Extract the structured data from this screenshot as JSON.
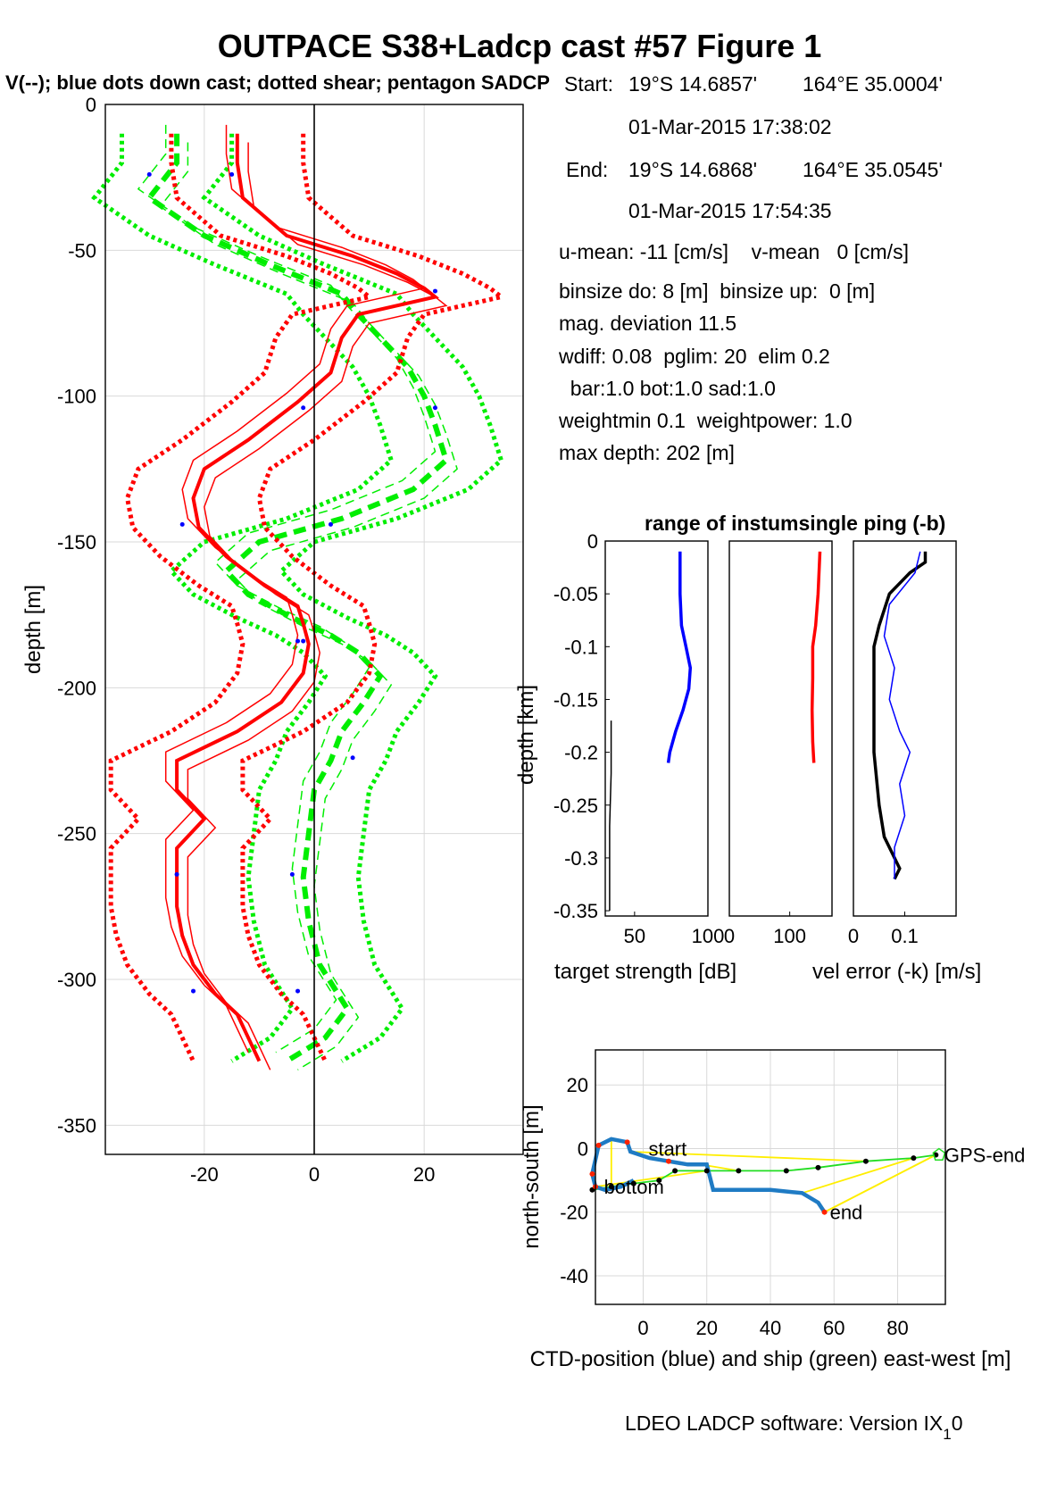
{
  "figure": {
    "title": "OUTPACE S38+Ladcp cast #57  Figure 1",
    "subtitle": "V(--); blue dots down cast; dotted shear; pentagon SADCP",
    "footer_main": "LDEO LADCP software: Version IX",
    "footer_sub": "1",
    "footer_end": "0"
  },
  "info": {
    "start_label": "Start:",
    "start_lat": "19°S 14.6857'",
    "start_lon": "164°E 35.0004'",
    "start_time": "01-Mar-2015 17:38:02",
    "end_label": "End:",
    "end_lat": "19°S 14.6868'",
    "end_lon": "164°E 35.0545'",
    "end_time": "01-Mar-2015 17:54:35",
    "line1": "u-mean: -11 [cm/s]    v-mean   0 [cm/s]",
    "line2": "binsize do: 8 [m]  binsize up:  0 [m]",
    "line3": "mag. deviation 11.5",
    "line4": "wdiff: 0.08  pglim: 20  elim 0.2",
    "line5": "  bar:1.0 bot:1.0 sad:1.0",
    "line6": "weightmin 0.1  weightpower: 1.0",
    "line7": "max depth: 202 [m]"
  },
  "chart_data": [
    {
      "type": "line",
      "name": "velocity-profile",
      "ylabel": "depth [m]",
      "xlim": [
        -38,
        38
      ],
      "ylim": [
        -360,
        0
      ],
      "xticks": [
        -20,
        0,
        20
      ],
      "yticks": [
        0,
        -50,
        -100,
        -150,
        -200,
        -250,
        -300,
        -350
      ],
      "grid": true,
      "colors": {
        "u": "#ff0000",
        "v": "#00ee00",
        "dots": "#0000ff",
        "zero": "#000000"
      },
      "u_depth": [
        -10,
        -20,
        -32,
        -45,
        -52,
        -58,
        -63,
        -66,
        -72,
        -80,
        -92,
        -102,
        -115,
        -125,
        -135,
        -145,
        -155,
        -165,
        -172,
        -178,
        -185,
        -195,
        -205,
        -215,
        -225,
        -235,
        -245,
        -255,
        -265,
        -275,
        -285,
        -295,
        -305,
        -312,
        -320,
        -328
      ],
      "u": [
        -14,
        -14,
        -13,
        -5,
        7,
        15,
        20,
        22,
        8,
        5,
        3,
        -3,
        -12,
        -20,
        -22,
        -21,
        -16,
        -9,
        -3,
        -2,
        -1,
        -2,
        -6,
        -14,
        -25,
        -25,
        -20,
        -25,
        -25,
        -25,
        -24,
        -22,
        -18,
        -14,
        -12,
        -10
      ],
      "u_dotted_lo": [
        -26,
        -26,
        -25,
        -17,
        -5,
        3,
        8,
        10,
        -4,
        -7,
        -9,
        -15,
        -24,
        -32,
        -34,
        -33,
        -28,
        -21,
        -15,
        -14,
        -13,
        -14,
        -18,
        -26,
        -37,
        -37,
        -32,
        -37,
        -37,
        -37,
        -36,
        -34,
        -30,
        -26,
        -24,
        -22
      ],
      "u_dotted_hi": [
        -2,
        -2,
        -1,
        7,
        19,
        27,
        32,
        34,
        20,
        17,
        15,
        9,
        0,
        -8,
        -10,
        -9,
        -4,
        3,
        9,
        10,
        11,
        10,
        6,
        -2,
        -13,
        -13,
        -8,
        -13,
        -13,
        -13,
        -12,
        -10,
        -6,
        -2,
        0,
        2
      ],
      "v_depth": [
        -10,
        -20,
        -32,
        -45,
        -55,
        -65,
        -72,
        -80,
        -90,
        -100,
        -110,
        -122,
        -132,
        -142,
        -150,
        -160,
        -168,
        -176,
        -182,
        -188,
        -196,
        -205,
        -215,
        -225,
        -235,
        -250,
        -265,
        -280,
        -295,
        -310,
        -320,
        -328
      ],
      "v": [
        -25,
        -25,
        -30,
        -20,
        -8,
        5,
        8,
        12,
        17,
        20,
        22,
        24,
        18,
        5,
        -10,
        -16,
        -12,
        -4,
        3,
        8,
        12,
        9,
        5,
        3,
        0,
        -1,
        -2,
        -1,
        1,
        6,
        2,
        -5
      ],
      "v_dotted_lo": [
        -35,
        -35,
        -40,
        -30,
        -18,
        -5,
        -2,
        2,
        7,
        10,
        12,
        14,
        8,
        -5,
        -20,
        -26,
        -22,
        -14,
        -7,
        -2,
        2,
        -1,
        -5,
        -7,
        -10,
        -11,
        -12,
        -11,
        -9,
        -4,
        -8,
        -15
      ],
      "v_dotted_hi": [
        -15,
        -15,
        -20,
        -10,
        2,
        15,
        18,
        22,
        27,
        30,
        32,
        34,
        28,
        15,
        0,
        -6,
        -2,
        6,
        13,
        18,
        22,
        19,
        15,
        13,
        10,
        9,
        8,
        9,
        11,
        16,
        12,
        5
      ],
      "blue_dots": [
        [
          -30,
          -24
        ],
        [
          -15,
          -24
        ],
        [
          22,
          -64
        ],
        [
          22,
          -104
        ],
        [
          -2,
          -104
        ],
        [
          -24,
          -144
        ],
        [
          3,
          -144
        ],
        [
          -3,
          -184
        ],
        [
          -2,
          -184
        ],
        [
          7,
          -224
        ],
        [
          -25,
          -264
        ],
        [
          -4,
          -264
        ],
        [
          -22,
          -304
        ],
        [
          -3,
          -304
        ]
      ]
    },
    {
      "type": "line",
      "name": "target-strength",
      "title": "range of instumsingle ping (-b)",
      "xlabel": "target strength [dB]",
      "ylabel": "depth [km]",
      "xlim": [
        30,
        100
      ],
      "ylim": [
        -0.355,
        0
      ],
      "xticks": [
        50,
        100
      ],
      "xticklabels": [
        "50",
        "100"
      ],
      "yticks": [
        0,
        -0.05,
        -0.1,
        -0.15,
        -0.2,
        -0.25,
        -0.3,
        -0.35
      ],
      "yticklabels": [
        "0",
        "-0.05",
        "-0.1",
        "-0.15",
        "-0.2",
        "-0.25",
        "-0.3",
        "-0.35"
      ],
      "series": [
        {
          "color": "#0000ff",
          "depth": [
            -0.01,
            -0.05,
            -0.08,
            -0.1,
            -0.12,
            -0.14,
            -0.16,
            -0.18,
            -0.2,
            -0.21
          ],
          "x": [
            81,
            81,
            82,
            85,
            88,
            87,
            83,
            78,
            74,
            73
          ]
        },
        {
          "color": "#000000",
          "depth": [
            -0.17,
            -0.22,
            -0.27,
            -0.32,
            -0.35
          ],
          "x": [
            34,
            34,
            33,
            33,
            33
          ]
        }
      ]
    },
    {
      "type": "line",
      "name": "range",
      "xlim": [
        0,
        170
      ],
      "ylim": [
        -0.355,
        0
      ],
      "xticks": [
        0,
        100
      ],
      "xticklabels": [
        "0",
        "100"
      ],
      "series": [
        {
          "color": "#ff0000",
          "depth": [
            -0.01,
            -0.05,
            -0.08,
            -0.1,
            -0.13,
            -0.16,
            -0.19,
            -0.21
          ],
          "x": [
            150,
            147,
            143,
            138,
            138,
            137,
            138,
            140
          ]
        }
      ]
    },
    {
      "type": "line",
      "name": "vel-error",
      "xlabel": "vel error (-k) [m/s]",
      "xlim": [
        0,
        0.2
      ],
      "ylim": [
        -0.355,
        0
      ],
      "xticks": [
        0,
        0.1
      ],
      "xticklabels": [
        "0",
        "0.1"
      ],
      "series": [
        {
          "color": "#000000",
          "depth": [
            -0.01,
            -0.02,
            -0.03,
            -0.05,
            -0.08,
            -0.1,
            -0.15,
            -0.2,
            -0.25,
            -0.28,
            -0.3,
            -0.31,
            -0.32
          ],
          "x": [
            0.14,
            0.14,
            0.11,
            0.07,
            0.05,
            0.04,
            0.04,
            0.04,
            0.05,
            0.06,
            0.08,
            0.09,
            0.08
          ]
        },
        {
          "color": "#0000ff",
          "depth": [
            -0.01,
            -0.03,
            -0.06,
            -0.09,
            -0.12,
            -0.15,
            -0.18,
            -0.2,
            -0.23,
            -0.26,
            -0.29,
            -0.32
          ],
          "x": [
            0.13,
            0.12,
            0.07,
            0.06,
            0.08,
            0.07,
            0.09,
            0.11,
            0.09,
            0.1,
            0.08,
            0.08
          ]
        }
      ]
    },
    {
      "type": "line",
      "name": "positions",
      "xlabel": "CTD-position (blue) and ship (green) east-west [m]",
      "ylabel": "north-south [m]",
      "xlim": [
        -15,
        95
      ],
      "ylim": [
        -49,
        31
      ],
      "xticks": [
        0,
        20,
        40,
        60,
        80
      ],
      "yticks": [
        20,
        0,
        -20,
        -40
      ],
      "colors": {
        "ctd": "#1f7bc4",
        "ship": "#22dd22",
        "link": "#ffee00"
      },
      "ctd": [
        [
          -3,
          -10
        ],
        [
          -7,
          -12
        ],
        [
          -12,
          -13
        ],
        [
          -15,
          -12
        ],
        [
          -16,
          -8
        ],
        [
          -14,
          1
        ],
        [
          -10,
          3
        ],
        [
          -5,
          2
        ],
        [
          -4,
          -1
        ],
        [
          2,
          -3
        ],
        [
          8,
          -4
        ],
        [
          14,
          -5
        ],
        [
          18,
          -5
        ],
        [
          20,
          -5
        ],
        [
          21,
          -9
        ],
        [
          22,
          -13
        ],
        [
          30,
          -13
        ],
        [
          40,
          -13
        ],
        [
          50,
          -14
        ],
        [
          55,
          -17
        ],
        [
          57,
          -20
        ]
      ],
      "ship": [
        [
          -16,
          -13
        ],
        [
          -10,
          -12
        ],
        [
          -3,
          -11
        ],
        [
          5,
          -10
        ],
        [
          10,
          -7
        ],
        [
          20,
          -7
        ],
        [
          30,
          -7
        ],
        [
          45,
          -7
        ],
        [
          55,
          -6
        ],
        [
          70,
          -4
        ],
        [
          85,
          -3
        ],
        [
          92,
          -2
        ]
      ],
      "labels": [
        {
          "text": "start",
          "x": 0,
          "y": 0
        },
        {
          "text": "bottom",
          "x": -14,
          "y": -12
        },
        {
          "text": "end",
          "x": 57,
          "y": -20
        },
        {
          "text": "GPS-end",
          "x": 93,
          "y": -2
        }
      ]
    }
  ]
}
